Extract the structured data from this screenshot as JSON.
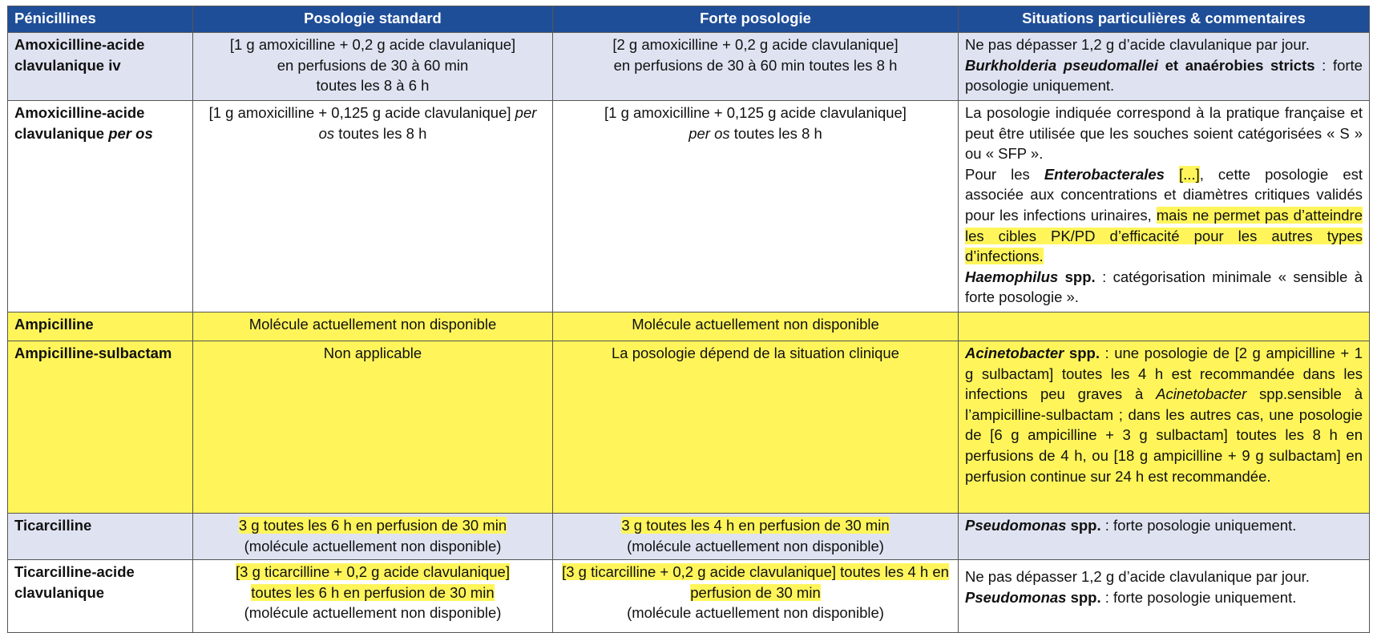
{
  "header": [
    "Pénicillines",
    "Posologie standard",
    "Forte posologie",
    "Situations particulières & commentaires"
  ],
  "rows": [
    [
      [
        "Amoxicilline-acide clavulanique iv"
      ],
      [
        "[1 g amoxicilline + 0,2 g acide clavulanique]",
        "en perfusions de 30 à 60 min",
        "toutes les 8 à 6 h"
      ],
      [
        "[2 g amoxicilline + 0,2 g acide clavulanique]",
        "en perfusions de 30 à 60 min toutes les 8 h"
      ],
      [
        "Ne pas dépasser 1,2 g d’acide clavulanique par jour.",
        "Burkholderia pseudomallei",
        " et anaérobies stricts",
        " : forte posologie uniquement."
      ]
    ],
    [
      [
        "Amoxicilline-acide clavulanique ",
        "per os"
      ],
      [
        "[1 g amoxicilline + 0,125 g acide clavulanique] ",
        "per os",
        " toutes les 8 h"
      ],
      [
        "[1 g amoxicilline + 0,125 g acide clavulanique]",
        "per os",
        " toutes les 8 h"
      ],
      [
        "La posologie indiquée correspond à la pratique française et peut être utilisée que les souches soient catégorisées « S » ou « SFP ».",
        "Pour les ",
        "Enterobacterales",
        "[...]",
        ", cette posologie est associée aux concentrations et diamètres critiques validés pour les infections urinaires, ",
        "mais ne permet pas d’atteindre les cibles PK/PD d’efficacité pour les autres types d’infections.",
        "Haemophilus",
        " spp.",
        " : catégorisation minimale « sensible à forte posologie »."
      ]
    ],
    [
      [
        "Ampicilline"
      ],
      [
        "Molécule actuellement non disponible"
      ],
      [
        "Molécule actuellement non disponible"
      ],
      []
    ],
    [
      [
        "Ampicilline-sulbactam"
      ],
      [
        "Non applicable"
      ],
      [
        "La posologie dépend de la situation clinique"
      ],
      [
        "Acinetobacter",
        " spp.",
        " : une posologie de [2 g ampicilline + 1 g sulbactam] toutes les 4 h est recommandée dans les infections peu graves à ",
        "Acinetobacter",
        " spp.sensible à l’ampicilline-sulbactam ; dans les autres cas, une posologie de [6 g ampicilline + 3 g sulbactam] toutes les 8 h en perfusions de 4 h, ou [18 g ampicilline + 9 g sulbactam] en perfusion continue sur 24 h est recommandée."
      ]
    ],
    [
      [
        "Ticarcilline"
      ],
      [
        "3 g toutes les 6 h en perfusion de 30 min",
        "(molécule actuellement non disponible)"
      ],
      [
        "3 g toutes les 4 h en perfusion de 30 min",
        "(molécule actuellement non disponible)"
      ],
      [
        "Pseudomonas",
        " spp.",
        " : forte posologie uniquement."
      ]
    ],
    [
      [
        "Ticarcilline-acide clavulanique"
      ],
      [
        "[3 g ticarcilline + 0,2 g acide clavulanique]",
        "toutes les 6 h en perfusion de 30 min",
        "(molécule actuellement non disponible)"
      ],
      [
        "[3 g ticarcilline + 0,2 g acide clavulanique] toutes les 4 h en perfusion de 30 min",
        "(molécule actuellement non disponible)"
      ],
      [
        "Ne pas dépasser 1,2  g d’acide clavulanique par jour.",
        "Pseudomonas",
        " spp.",
        " : forte posologie uniquement."
      ]
    ]
  ]
}
